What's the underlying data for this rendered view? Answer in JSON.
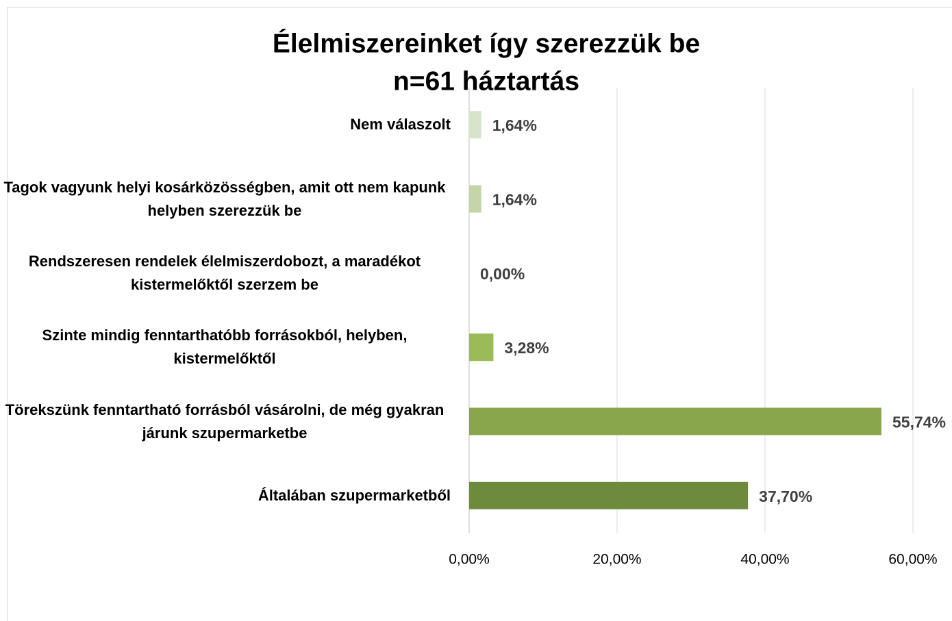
{
  "chart_data": {
    "type": "hbar",
    "title": "Élelmiszereinket így szerezzük be",
    "subtitle": "n=61 háztartás",
    "categories": [
      "Nem válaszolt",
      "Tagok vagyunk helyi kosárközösségben, amit ott nem kapunk helyben szerezzük be",
      "Rendszeresen rendelek élelmiszerdobozt, a maradékot kistermelőktől szerzem be",
      "Szinte mindig fenntarthatóbb forrásokból, helyben, kistermelőktől",
      "Törekszünk fenntartható forrásból vásárolni, de még gyakran járunk szupermarketbe",
      "Általában szupermarketből"
    ],
    "values": [
      1.64,
      1.64,
      0.0,
      3.28,
      55.74,
      37.7
    ],
    "value_labels": [
      "1,64%",
      "1,64%",
      "0,00%",
      "3,28%",
      "55,74%",
      "37,70%"
    ],
    "colors": [
      "#d7e4c9",
      "#c4d6a9",
      "#b0c98a",
      "#9bbb59",
      "#8aa64d",
      "#6e8b3d"
    ],
    "xlim": [
      0,
      60
    ],
    "xticks": [
      {
        "value": 0,
        "label": "0,00%"
      },
      {
        "value": 20,
        "label": "20,00%"
      },
      {
        "value": 40,
        "label": "40,00%"
      },
      {
        "value": 60,
        "label": "60,00%"
      }
    ],
    "grid": true
  }
}
